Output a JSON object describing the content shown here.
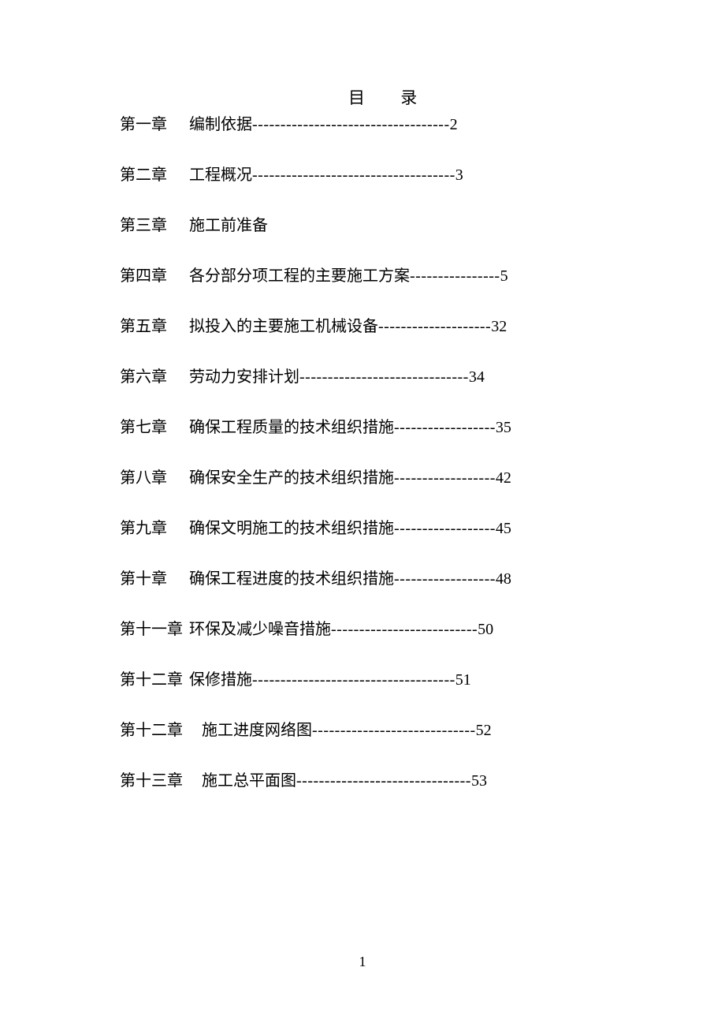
{
  "document": {
    "title": "目 录",
    "page_number": "1",
    "text_color": "#000000",
    "background_color": "#ffffff",
    "font_family": "SimSun",
    "title_fontsize": 21,
    "body_fontsize": 20,
    "entries": [
      {
        "chapter": "第一章",
        "title": "编制依据",
        "dashes": "-----------------------------------",
        "page": "2",
        "gap_class": "gap-normal"
      },
      {
        "chapter": "第二章",
        "title": "工程概况",
        "dashes": "------------------------------------",
        "page": "3",
        "gap_class": "gap-normal"
      },
      {
        "chapter": "第三章",
        "title": "施工前准备",
        "dashes": "",
        "page": "",
        "gap_class": "gap-normal"
      },
      {
        "chapter": "第四章",
        "title": "各分部分项工程的主要施工方案",
        "dashes": "----------------",
        "page": "5",
        "gap_class": "gap-normal"
      },
      {
        "chapter": "第五章",
        "title": "拟投入的主要施工机械设备",
        "dashes": "--------------------",
        "page": "32",
        "gap_class": "gap-normal"
      },
      {
        "chapter": "第六章",
        "title": "劳动力安排计划",
        "dashes": "------------------------------",
        "page": "34",
        "gap_class": "gap-normal"
      },
      {
        "chapter": "第七章",
        "title": "确保工程质量的技术组织措施",
        "dashes": "------------------",
        "page": "35",
        "gap_class": "gap-normal"
      },
      {
        "chapter": "第八章",
        "title": "确保安全生产的技术组织措施",
        "dashes": "------------------",
        "page": "42",
        "gap_class": "gap-normal"
      },
      {
        "chapter": "第九章",
        "title": "确保文明施工的技术组织措施",
        "dashes": "------------------",
        "page": "45",
        "gap_class": "gap-normal"
      },
      {
        "chapter": "第十章",
        "title": "确保工程进度的技术组织措施",
        "dashes": "------------------",
        "page": "48",
        "gap_class": "gap-normal"
      },
      {
        "chapter": "第十一章",
        "title": "环保及减少噪音措施",
        "dashes": "--------------------------",
        "page": "50",
        "gap_class": "gap-wide"
      },
      {
        "chapter": "第十二章",
        "title": "保修措施",
        "dashes": "------------------------------------",
        "page": "51",
        "gap_class": "gap-wide"
      },
      {
        "chapter": "第十二章",
        "title": "施工进度网络图",
        "dashes": "-----------------------------",
        "page": "52",
        "gap_class": "gap-wider"
      },
      {
        "chapter": "第十三章",
        "title": "施工总平面图",
        "dashes": "-------------------------------",
        "page": "53",
        "gap_class": "gap-wider"
      }
    ]
  }
}
